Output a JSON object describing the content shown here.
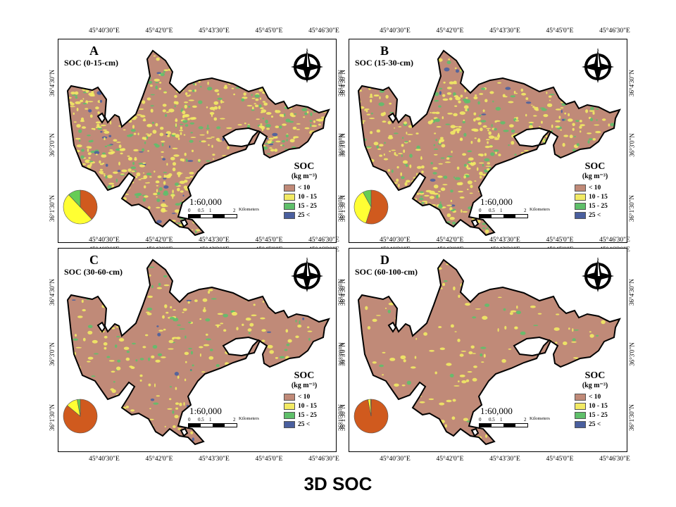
{
  "caption": "3D SOC",
  "colors": {
    "lt10": "#c08a78",
    "c10_15": "#f2ea64",
    "c15_25": "#5fbf6a",
    "gt25": "#4a5f9e",
    "pie_lt10": "#d05a1e",
    "pie_10_15": "#ffff33",
    "pie_15_25": "#66cc55"
  },
  "legend": {
    "title": "SOC",
    "units": "(kg m⁻³)",
    "classes": [
      "< 10",
      "10 - 15",
      "15 - 25",
      "25 <"
    ]
  },
  "scale": {
    "ratio": "1:60,000",
    "ticks": [
      "0",
      "0.5",
      "1",
      "2"
    ],
    "unit": "Kilometers"
  },
  "coords": {
    "top": [
      "45°40'30\"E",
      "45°42'0\"E",
      "45°43'30\"E",
      "45°45'0\"E",
      "45°46'30\"E"
    ],
    "side": [
      "36°4'30\"N",
      "36°3'0\"N",
      "36°1'30\"N"
    ]
  },
  "panels": [
    {
      "letter": "A",
      "depth": "SOC (0-15-cm)",
      "pie": [
        0.38,
        0.5,
        0.12
      ],
      "mix": [
        0.35,
        0.4,
        0.18,
        0.03
      ]
    },
    {
      "letter": "B",
      "depth": "SOC (15-30-cm)",
      "pie": [
        0.55,
        0.37,
        0.08
      ],
      "mix": [
        0.5,
        0.35,
        0.12,
        0.02
      ]
    },
    {
      "letter": "C",
      "depth": "SOC (30-60-cm)",
      "pie": [
        0.86,
        0.11,
        0.03
      ],
      "mix": [
        0.8,
        0.13,
        0.05,
        0.01
      ]
    },
    {
      "letter": "D",
      "depth": "SOC (60-100-cm)",
      "pie": [
        0.97,
        0.025,
        0.005
      ],
      "mix": [
        0.93,
        0.05,
        0.015,
        0.0
      ]
    }
  ]
}
